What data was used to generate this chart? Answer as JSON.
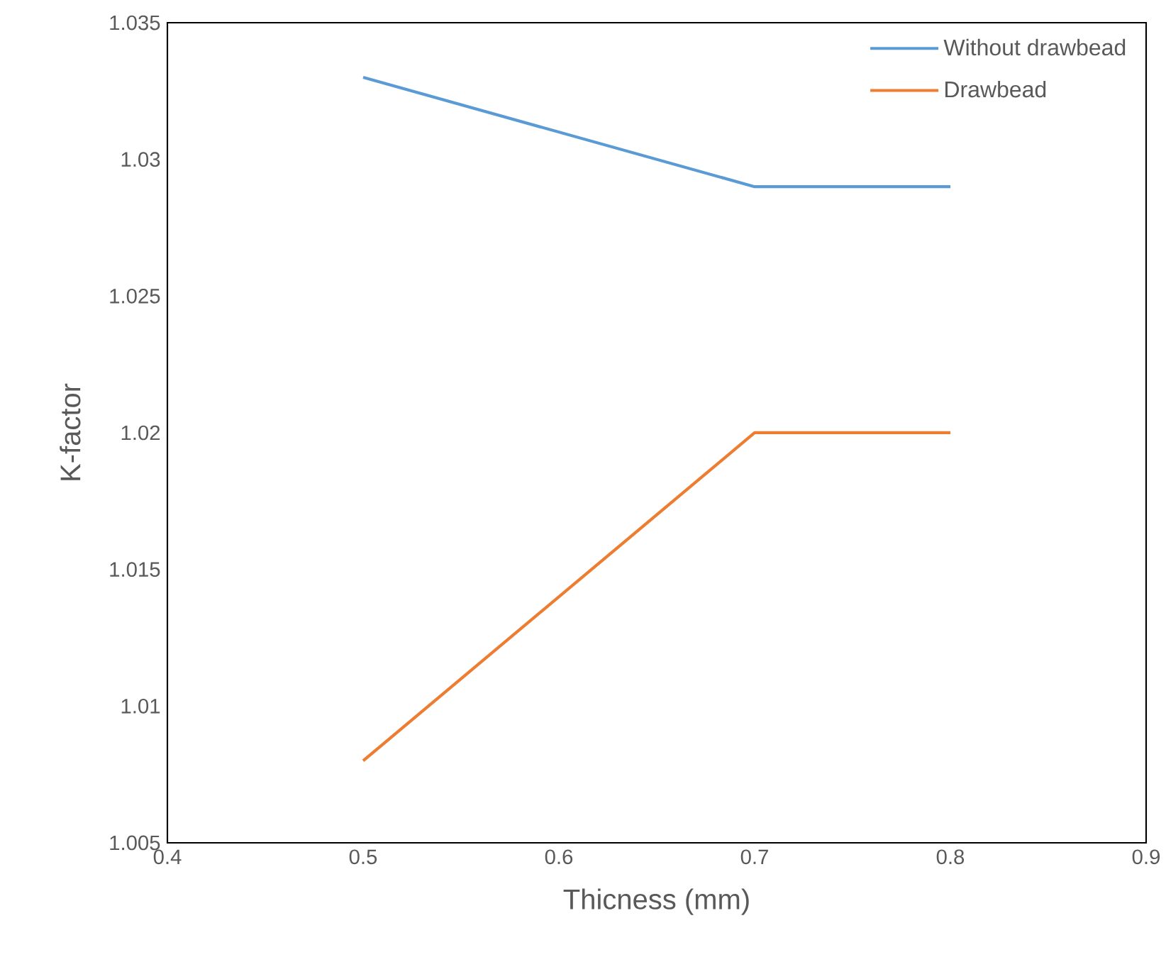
{
  "chart_data": {
    "type": "line",
    "xlabel": "Thicness (mm)",
    "ylabel": "K-factor",
    "x": [
      0.5,
      0.7,
      0.8
    ],
    "series": [
      {
        "name": "Without drawbead",
        "color": "#5b9bd5",
        "values": [
          1.033,
          1.029,
          1.029
        ]
      },
      {
        "name": "Drawbead",
        "color": "#ed7d31",
        "values": [
          1.008,
          1.02,
          1.02
        ]
      }
    ],
    "xlim": [
      0.4,
      0.9
    ],
    "xticks": [
      0.4,
      0.5,
      0.6,
      0.7,
      0.8,
      0.9
    ],
    "ylim": [
      1.005,
      1.035
    ],
    "yticks": [
      1.005,
      1.01,
      1.015,
      1.02,
      1.025,
      1.03,
      1.035
    ],
    "grid": false,
    "legend": "top right",
    "marker": "none",
    "line_style": "solid"
  }
}
